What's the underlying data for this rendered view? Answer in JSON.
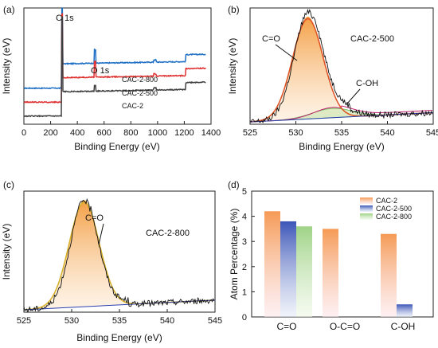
{
  "chart_data": [
    {
      "panel": "(a)",
      "type": "line",
      "xlabel": "Binding Energy (eV)",
      "ylabel": "Intensity (eV)",
      "xlim": [
        0,
        1400
      ],
      "xticks": [
        0,
        200,
        400,
        600,
        800,
        1000,
        1200,
        1400
      ],
      "annotations": [
        "C 1s",
        "O 1s"
      ],
      "series": [
        {
          "name": "CAC-2-800",
          "color": "#1f6fc5",
          "offset": 0.52,
          "c1s": 1.0,
          "o1s": 0.12
        },
        {
          "name": "CAC-2-500",
          "color": "#e03030",
          "offset": 0.4,
          "c1s": 0.95,
          "o1s": 0.14
        },
        {
          "name": "CAC-2",
          "color": "#404040",
          "offset": 0.28,
          "c1s": 0.92,
          "o1s": 0.05
        }
      ]
    },
    {
      "panel": "(b)",
      "type": "line",
      "sample": "CAC-2-500",
      "xlabel": "Binding Energy (eV)",
      "ylabel": "Intensity (eV)",
      "xlim": [
        525,
        545
      ],
      "xticks": [
        525,
        530,
        535,
        540,
        545
      ],
      "annotations": [
        "C=O",
        "C-OH"
      ],
      "peaks": [
        {
          "name": "C=O",
          "center": 531.3,
          "height": 0.88,
          "width": 1.6
        },
        {
          "name": "C-OH",
          "center": 534.0,
          "height": 0.08,
          "width": 2.2
        }
      ]
    },
    {
      "panel": "(c)",
      "type": "line",
      "sample": "CAC-2-800",
      "xlabel": "Binding Energy (eV)",
      "ylabel": "Intensity (eV)",
      "xlim": [
        525,
        545
      ],
      "xticks": [
        525,
        530,
        535,
        540,
        545
      ],
      "annotations": [
        "C=O"
      ],
      "peaks": [
        {
          "name": "C=O",
          "center": 531.3,
          "height": 0.88,
          "width": 1.5
        }
      ]
    },
    {
      "panel": "(d)",
      "type": "bar",
      "ylabel": "Atom Percentage (%)",
      "ylim": [
        0,
        5
      ],
      "yticks": [
        0,
        1,
        2,
        3,
        4,
        5
      ],
      "categories": [
        "C=O",
        "O-C=O",
        "C-OH"
      ],
      "legend_position": "top-right",
      "series": [
        {
          "name": "CAC-2",
          "color": "#f5a35a",
          "values": [
            4.2,
            3.5,
            3.3
          ]
        },
        {
          "name": "CAC-2-500",
          "color": "#3f5fbf",
          "values": [
            3.8,
            null,
            0.5
          ]
        },
        {
          "name": "CAC-2-800",
          "color": "#a8d68f",
          "values": [
            3.6,
            null,
            null
          ]
        }
      ]
    }
  ]
}
